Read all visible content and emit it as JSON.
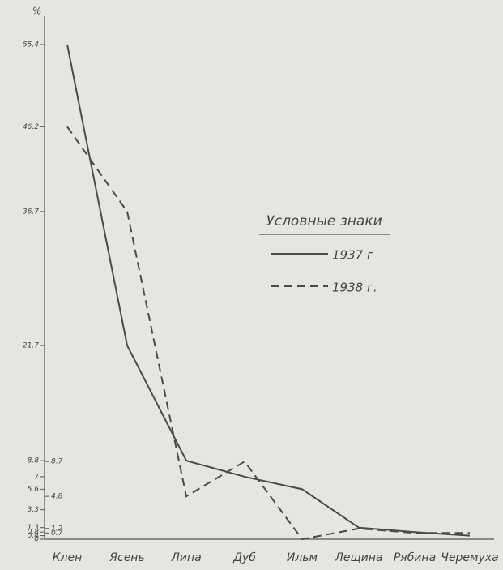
{
  "chart_data": {
    "type": "line",
    "y_label": "%",
    "categories": [
      "Клен",
      "Ясень",
      "Липа",
      "Дуб",
      "Ильм",
      "Лещина",
      "Рябина",
      "Черемуха"
    ],
    "legend_title": "Условные знаки",
    "series": [
      {
        "name": "1937 г",
        "color": "#4a4a4a",
        "dash": "solid",
        "values": [
          55.4,
          21.7,
          8.8,
          7.0,
          5.6,
          1.3,
          0.8,
          0.4
        ]
      },
      {
        "name": "1938 г.",
        "color": "#4a4a4a",
        "dash": "dashed",
        "values": [
          46.2,
          36.7,
          4.8,
          8.7,
          0,
          1.2,
          0.7,
          0.7
        ]
      }
    ],
    "ylim": [
      0,
      55.4
    ],
    "yticks": [
      0,
      0.4,
      0.8,
      1.3,
      3.3,
      5.6,
      7.0,
      8.8,
      21.7,
      36.7,
      46.2,
      55.4
    ],
    "yticks_right": [
      0.7,
      1.2,
      4.8,
      8.7
    ],
    "grid": false
  }
}
